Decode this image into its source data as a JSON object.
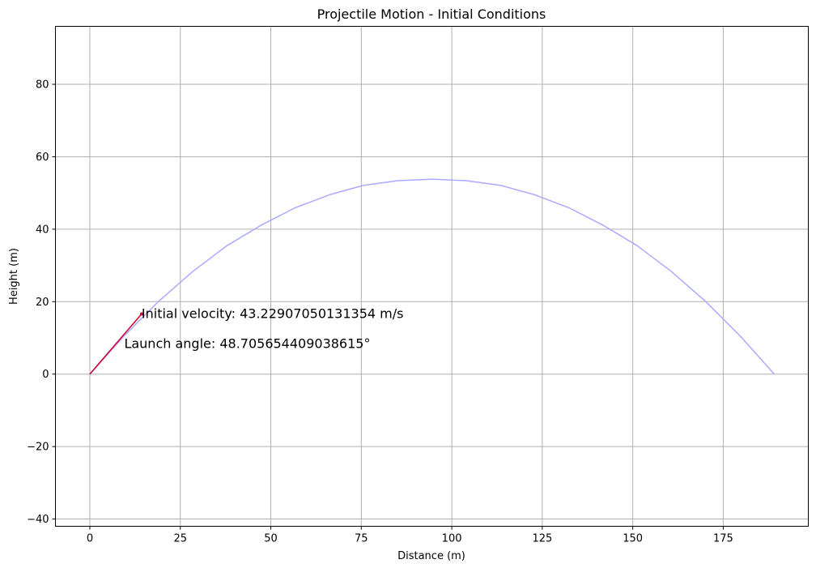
{
  "chart_data": {
    "type": "line",
    "title": "Projectile Motion - Initial Conditions",
    "xlabel": "Distance (m)",
    "ylabel": "Height (m)",
    "xlim": [
      -9.5,
      198.5
    ],
    "ylim": [
      -42,
      96
    ],
    "x_ticks": [
      0,
      25,
      50,
      75,
      100,
      125,
      150,
      175
    ],
    "y_ticks": [
      -40,
      -20,
      0,
      20,
      40,
      60,
      80
    ],
    "grid": true,
    "series": [
      {
        "kind": "trajectory",
        "color": "#aaaaff",
        "points": [
          [
            0,
            0
          ],
          [
            9.46,
            10.5
          ],
          [
            18.9,
            20.0
          ],
          [
            28.4,
            28.3
          ],
          [
            37.8,
            35.4
          ],
          [
            47.3,
            41.1
          ],
          [
            56.7,
            45.9
          ],
          [
            66.2,
            49.5
          ],
          [
            75.6,
            52.1
          ],
          [
            85.1,
            53.4
          ],
          [
            94.6,
            53.8
          ],
          [
            104.0,
            53.4
          ],
          [
            113.5,
            52.1
          ],
          [
            122.9,
            49.5
          ],
          [
            132.4,
            45.9
          ],
          [
            141.8,
            41.1
          ],
          [
            151.3,
            35.4
          ],
          [
            160.7,
            28.3
          ],
          [
            170.2,
            20.0
          ],
          [
            179.7,
            10.5
          ],
          [
            189.1,
            0
          ]
        ]
      }
    ],
    "velocity_vector": {
      "color": "#cc0033",
      "start": [
        0,
        0
      ],
      "end": [
        14.3,
        16.6
      ]
    },
    "annotations": [
      {
        "text": "Initial velocity: 43.22907050131354 m/s",
        "x": 14.3,
        "y": 16.6
      },
      {
        "text": "Launch angle: 48.705654409038615°",
        "x": 9.5,
        "y": 8.3
      }
    ]
  }
}
